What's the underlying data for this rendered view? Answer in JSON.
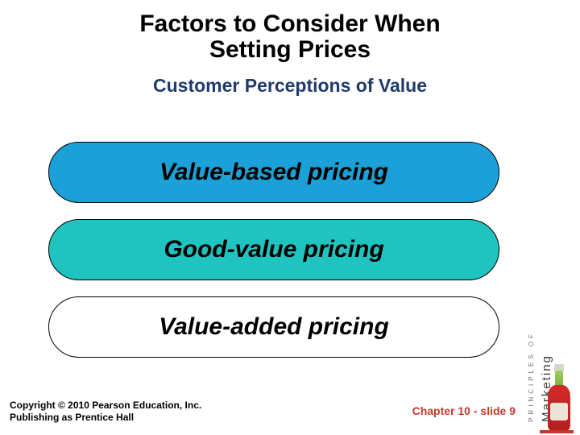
{
  "title_line1": "Factors to Consider When",
  "title_line2": "Setting Prices",
  "title_fontsize": 30,
  "subtitle": "Customer Perceptions of Value",
  "subtitle_fontsize": 23,
  "subtitle_color": "#1f3a6e",
  "pills": [
    {
      "text": "Value-based pricing",
      "bg": "#1ba0d7"
    },
    {
      "text": "Good-value pricing",
      "bg": "#1fc4c0"
    },
    {
      "text": "Value-added pricing",
      "bg": "#ffffff"
    }
  ],
  "pill_fontsize": 30,
  "copyright_line1": "Copyright © 2010 Pearson Education, Inc.",
  "copyright_line2": "Publishing as Prentice Hall",
  "copyright_fontsize": 12,
  "chapter": "Chapter 10 - slide 9",
  "chapter_fontsize": 14,
  "chapter_color": "#c0392b",
  "brand_small": "PRINCIPLES OF",
  "brand_big": "Marketing",
  "background_color": "#ffffff"
}
